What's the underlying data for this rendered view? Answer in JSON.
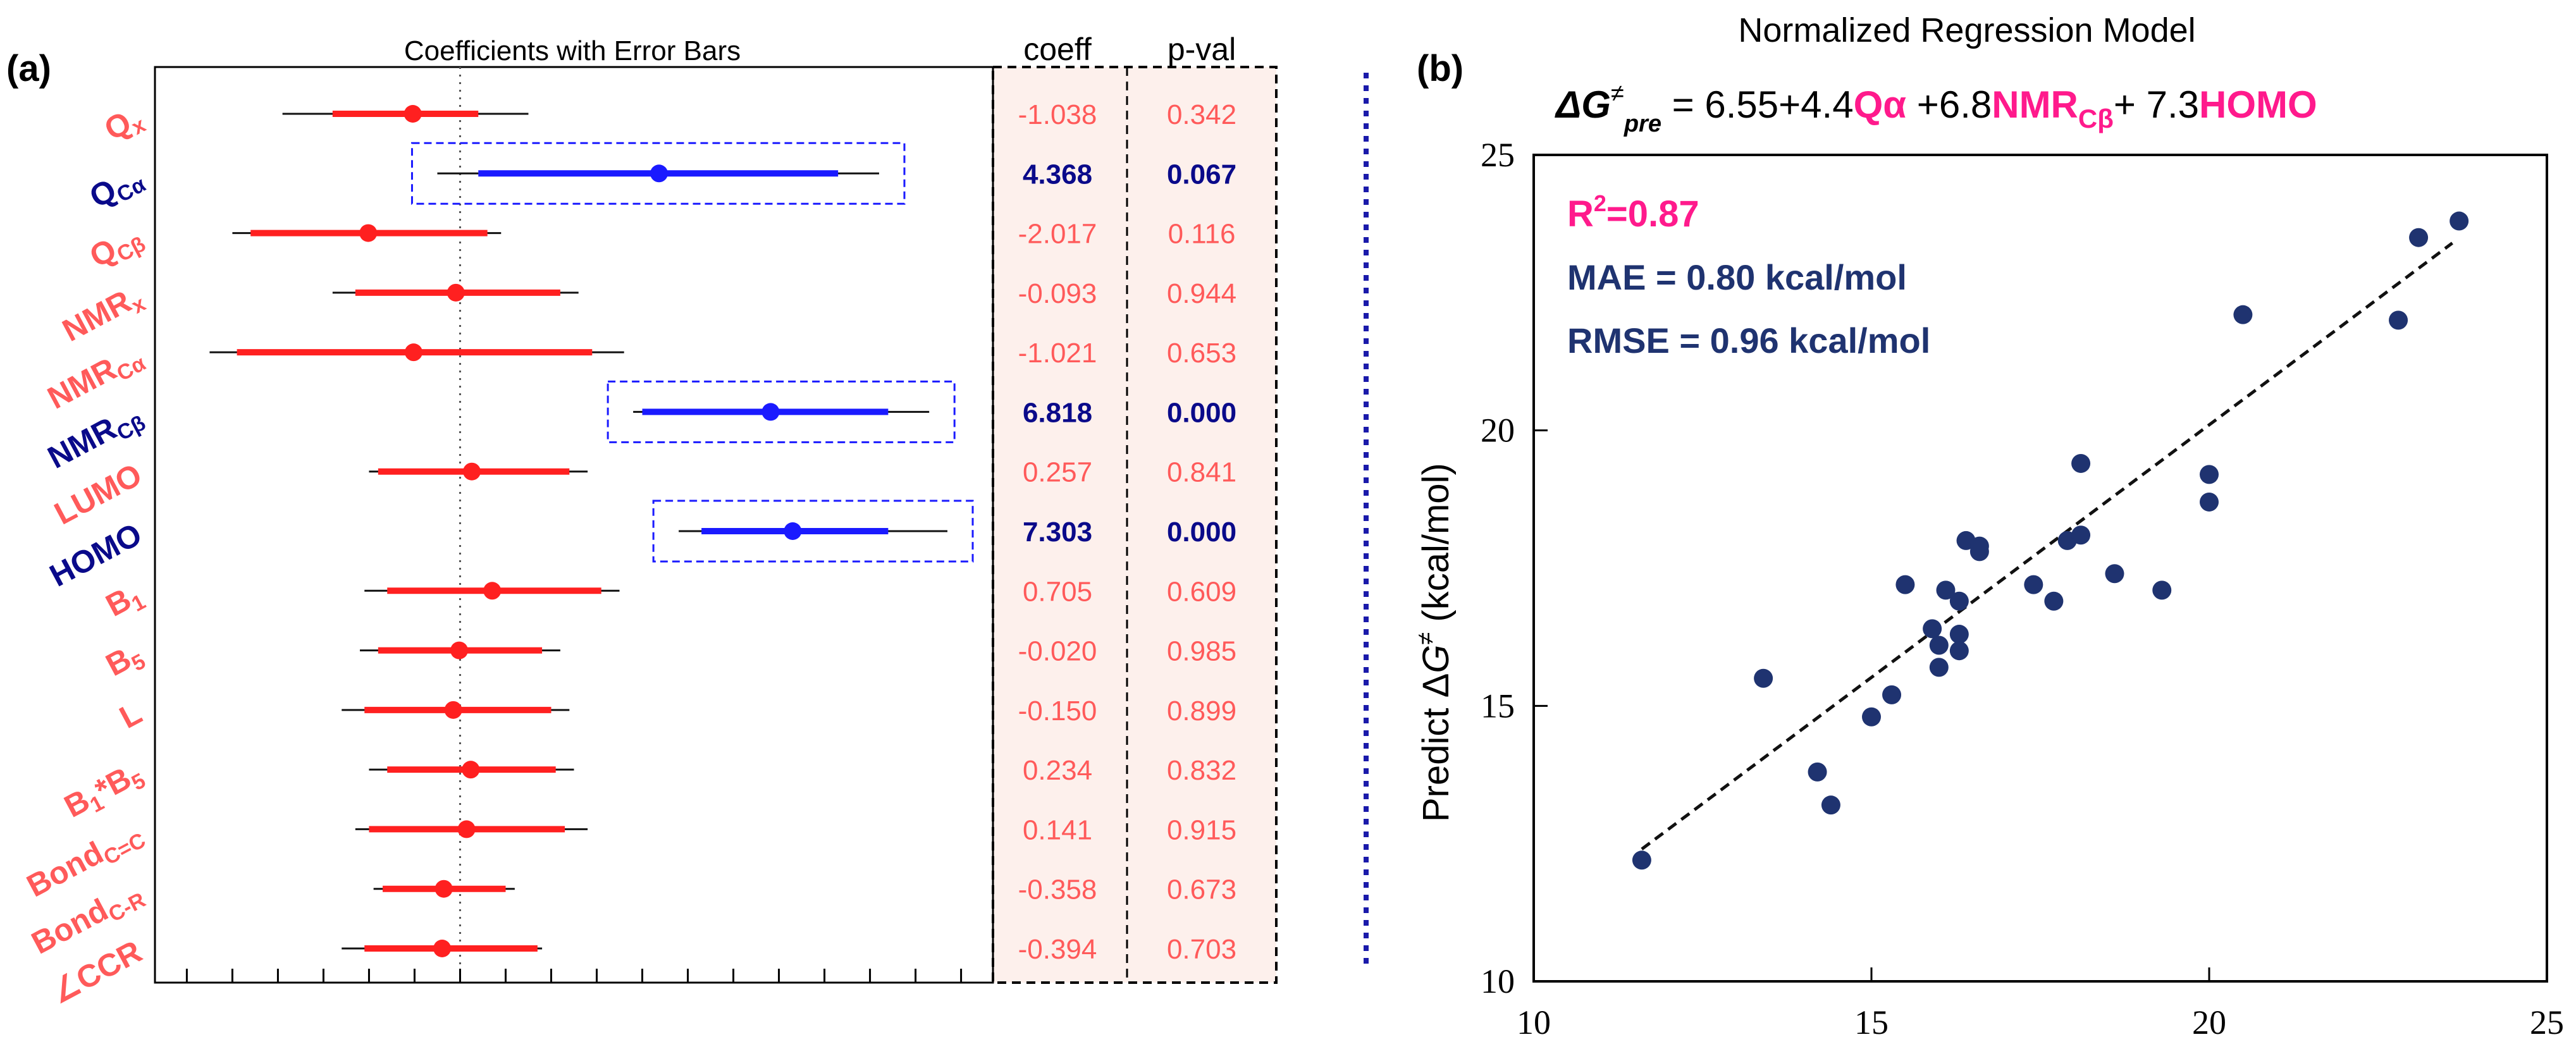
{
  "panel_a": {
    "tag": "(a)",
    "title": "Coefficients with Error Bars",
    "col_coeff": "coeff",
    "col_pval": "p-val",
    "colors": {
      "insignificant": "#ff2020",
      "significant": "#1a1aff",
      "label_red": "#ff5a5a",
      "label_blue": "#0a0a8a",
      "table_bg": "#fdf0ec"
    }
  },
  "panel_b": {
    "tag": "(b)",
    "title": "Normalized Regression Model",
    "eq": {
      "lhs_sym": "ΔG",
      "lhs_sup": "≠",
      "lhs_sub": "pre",
      "eqsign": " = 6.55+4.4",
      "t1": "Qα",
      "plus2": " +6.8",
      "t2": "NMR",
      "t2_sub": "Cβ",
      "plus3": "+ 7.3",
      "t3": "HOMO"
    },
    "r2_label": "R",
    "r2_sup": "2",
    "r2_val": "=0.87",
    "mae": "MAE = 0.80 kcal/mol",
    "rmse": "RMSE = 0.96 kcal/mol",
    "ylabel_pre": "Predict Δ",
    "ylabel_g": "G",
    "ylabel_sup": "≠",
    "ylabel_post": " (kcal/mol)",
    "colors": {
      "point": "#1f3370",
      "r2": "#ff1a8c",
      "stats": "#1f3370",
      "accent": "#ff1a8c"
    }
  },
  "chart_data": [
    {
      "type": "forest",
      "title": "Coefficients with Error Bars",
      "reference_line": 0,
      "xlim": [
        -6.7,
        11.7
      ],
      "columns": [
        "coeff",
        "p-val"
      ],
      "rows": [
        {
          "label": "Qx",
          "coeff": "-1.038",
          "pval": "0.342",
          "est": -1.038,
          "ci_inner": [
            -2.8,
            0.4
          ],
          "ci_outer": [
            -3.9,
            1.5
          ],
          "significant": false
        },
        {
          "label": "QCα",
          "coeff": "4.368",
          "pval": "0.067",
          "est": 4.368,
          "ci_inner": [
            0.4,
            8.3
          ],
          "ci_outer": [
            -0.5,
            9.2
          ],
          "significant": true
        },
        {
          "label": "QCβ",
          "coeff": "-2.017",
          "pval": "0.116",
          "est": -2.017,
          "ci_inner": [
            -4.6,
            0.6
          ],
          "ci_outer": [
            -5.0,
            0.9
          ],
          "significant": false
        },
        {
          "label": "NMRx",
          "coeff": "-0.093",
          "pval": "0.944",
          "est": -0.093,
          "ci_inner": [
            -2.3,
            2.2
          ],
          "ci_outer": [
            -2.8,
            2.6
          ],
          "significant": false
        },
        {
          "label": "NMRCα",
          "coeff": "-1.021",
          "pval": "0.653",
          "est": -1.021,
          "ci_inner": [
            -4.9,
            2.9
          ],
          "ci_outer": [
            -5.5,
            3.6
          ],
          "significant": false
        },
        {
          "label": "NMRCβ",
          "coeff": "6.818",
          "pval": "0.000",
          "est": 6.818,
          "ci_inner": [
            4.0,
            9.4
          ],
          "ci_outer": [
            3.8,
            10.3
          ],
          "significant": true
        },
        {
          "label": "LUMO",
          "coeff": "0.257",
          "pval": "0.841",
          "est": 0.257,
          "ci_inner": [
            -1.8,
            2.4
          ],
          "ci_outer": [
            -2.0,
            2.8
          ],
          "significant": false
        },
        {
          "label": "HOMO",
          "coeff": "7.303",
          "pval": "0.000",
          "est": 7.303,
          "ci_inner": [
            5.3,
            9.4
          ],
          "ci_outer": [
            4.8,
            10.7
          ],
          "significant": true
        },
        {
          "label": "B1",
          "coeff": "0.705",
          "pval": "0.609",
          "est": 0.705,
          "ci_inner": [
            -1.6,
            3.1
          ],
          "ci_outer": [
            -2.1,
            3.5
          ],
          "significant": false
        },
        {
          "label": "B5",
          "coeff": "-0.020",
          "pval": "0.985",
          "est": -0.02,
          "ci_inner": [
            -1.8,
            1.8
          ],
          "ci_outer": [
            -2.2,
            2.2
          ],
          "significant": false
        },
        {
          "label": "L",
          "coeff": "-0.150",
          "pval": "0.899",
          "est": -0.15,
          "ci_inner": [
            -2.1,
            2.0
          ],
          "ci_outer": [
            -2.6,
            2.4
          ],
          "significant": false
        },
        {
          "label": "B1*B5",
          "coeff": "0.234",
          "pval": "0.832",
          "est": 0.234,
          "ci_inner": [
            -1.6,
            2.1
          ],
          "ci_outer": [
            -2.0,
            2.5
          ],
          "significant": false
        },
        {
          "label": "BondC=C",
          "coeff": "0.141",
          "pval": "0.915",
          "est": 0.141,
          "ci_inner": [
            -2.0,
            2.3
          ],
          "ci_outer": [
            -2.3,
            2.8
          ],
          "significant": false
        },
        {
          "label": "BondC-R",
          "coeff": "-0.358",
          "pval": "0.673",
          "est": -0.358,
          "ci_inner": [
            -1.7,
            1.0
          ],
          "ci_outer": [
            -1.9,
            1.2
          ],
          "significant": false
        },
        {
          "label": "∠CCR",
          "coeff": "-0.394",
          "pval": "0.703",
          "est": -0.394,
          "ci_inner": [
            -2.1,
            1.7
          ],
          "ci_outer": [
            -2.6,
            1.8
          ],
          "significant": false
        }
      ]
    },
    {
      "type": "scatter",
      "title": "Normalized Regression Model",
      "ylabel": "Predict ΔG≠ (kcal/mol)",
      "xlim": [
        10,
        25
      ],
      "ylim": [
        10,
        25
      ],
      "xticks": [
        10,
        15,
        20,
        25
      ],
      "yticks": [
        10,
        15,
        20,
        25
      ],
      "points": [
        [
          11.6,
          12.2
        ],
        [
          13.4,
          15.5
        ],
        [
          14.2,
          13.8
        ],
        [
          14.4,
          13.2
        ],
        [
          15.0,
          14.8
        ],
        [
          15.3,
          15.2
        ],
        [
          15.5,
          17.2
        ],
        [
          15.9,
          16.4
        ],
        [
          16.0,
          16.1
        ],
        [
          16.0,
          15.7
        ],
        [
          16.1,
          17.1
        ],
        [
          16.3,
          16.3
        ],
        [
          16.3,
          16.0
        ],
        [
          16.3,
          16.9
        ],
        [
          16.4,
          18.0
        ],
        [
          16.6,
          17.8
        ],
        [
          16.6,
          17.9
        ],
        [
          17.4,
          17.2
        ],
        [
          17.7,
          16.9
        ],
        [
          17.9,
          18.0
        ],
        [
          18.1,
          18.1
        ],
        [
          18.1,
          19.4
        ],
        [
          18.6,
          17.4
        ],
        [
          19.3,
          17.1
        ],
        [
          20.0,
          19.2
        ],
        [
          20.0,
          18.7
        ],
        [
          20.5,
          22.1
        ],
        [
          22.8,
          22.0
        ],
        [
          23.1,
          23.5
        ],
        [
          23.7,
          23.8
        ]
      ],
      "fit_line": [
        [
          11.6,
          12.4
        ],
        [
          23.6,
          23.4
        ]
      ]
    }
  ]
}
